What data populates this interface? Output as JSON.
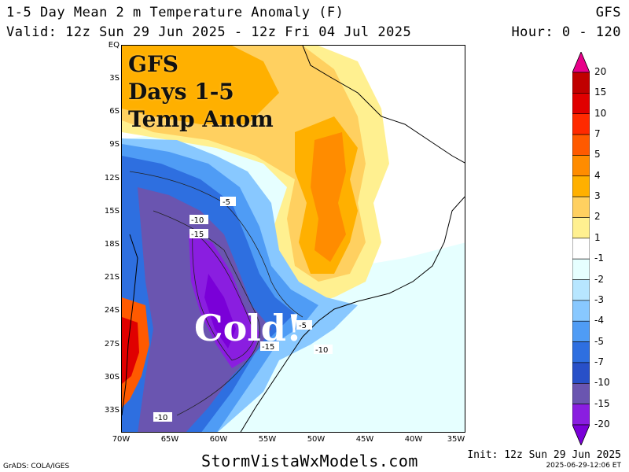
{
  "header": {
    "title": "1-5 Day Mean 2 m Temperature Anomaly (F)",
    "model": "GFS",
    "valid": "Valid: 12z Sun 29 Jun 2025 - 12z Fri 04 Jul 2025",
    "hour": "Hour: 0 - 120"
  },
  "overlay": {
    "line1": "GFS",
    "line2": "Days 1-5",
    "line3": "Temp Anom",
    "callout": "Cold!"
  },
  "map": {
    "lat_ticks": [
      "EQ",
      "3S",
      "6S",
      "9S",
      "12S",
      "15S",
      "18S",
      "21S",
      "24S",
      "27S",
      "30S",
      "33S"
    ],
    "lon_ticks": [
      "70W",
      "65W",
      "60W",
      "55W",
      "50W",
      "45W",
      "40W",
      "35W"
    ],
    "contour_labels": [
      "-5",
      "-10",
      "-15",
      "-5",
      "-15",
      "-10",
      "-10"
    ]
  },
  "colorbar": {
    "labels": [
      "20",
      "15",
      "10",
      "7",
      "5",
      "4",
      "3",
      "2",
      "1",
      "-1",
      "-2",
      "-3",
      "-4",
      "-5",
      "-7",
      "-10",
      "-15",
      "-20"
    ],
    "colors": [
      "#e8008a",
      "#c00000",
      "#e00000",
      "#ff2a00",
      "#ff5a00",
      "#ff8c00",
      "#ffb000",
      "#ffd060",
      "#fff090",
      "#ffffff",
      "#e6ffff",
      "#b7e6ff",
      "#88c8ff",
      "#4f9cf5",
      "#2e6fe0",
      "#2850c8",
      "#6a55b0",
      "#8a1ee0",
      "#7a00d8"
    ]
  },
  "footer": {
    "site": "StormVistaWxModels.com",
    "init": "Init: 12z Sun 29 Jun 2025",
    "stamp": "2025-06-29-12:06 ET",
    "grads": "GrADS: COLA/IGES"
  }
}
